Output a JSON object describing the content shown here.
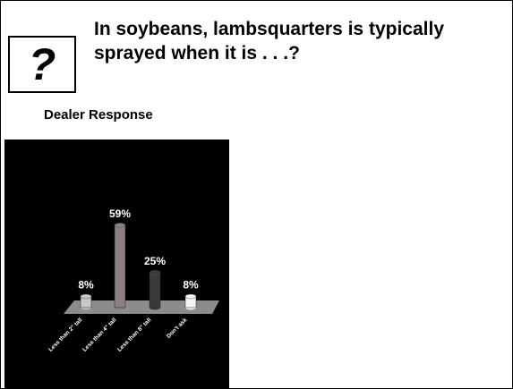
{
  "icon": "?",
  "title": "In soybeans, lambsquarters is typically sprayed when it is . . .?",
  "subtitle": "Dealer Response",
  "chart_data": {
    "type": "bar",
    "categories": [
      "Less than 2\" tall",
      "Less than 4\" tall",
      "Less than 8\" tall",
      "Don't ask"
    ],
    "values": [
      8,
      59,
      25,
      8
    ],
    "value_labels": [
      "8%",
      "59%",
      "25%",
      "8%"
    ],
    "colors": [
      "#c8c8c8",
      "#8a8080",
      "#3a3a3a",
      "#f4f4f4"
    ]
  }
}
